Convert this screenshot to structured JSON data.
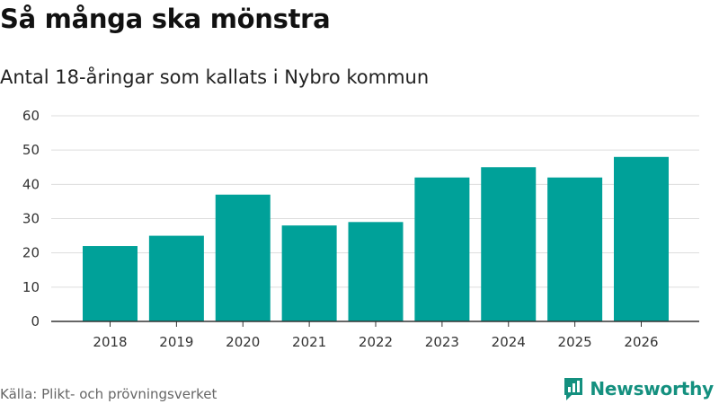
{
  "header": {
    "title": "Så många ska mönstra",
    "subtitle": "Antal 18-åringar som kallats i Nybro kommun"
  },
  "footer": {
    "source": "Källa: Plikt- och prövningsverket",
    "brand": "Newsworthy",
    "brand_logo_icon": "bar-chart-speech-bubble-icon"
  },
  "colors": {
    "bar": "#00a199",
    "grid": "#dddddd",
    "axis": "#333333",
    "brand": "#14907f"
  },
  "chart_data": {
    "type": "bar",
    "categories": [
      "2018",
      "2019",
      "2020",
      "2021",
      "2022",
      "2023",
      "2024",
      "2025",
      "2026"
    ],
    "values": [
      22,
      25,
      37,
      28,
      29,
      42,
      45,
      42,
      48
    ],
    "ylim": [
      0,
      60
    ],
    "yticks": [
      0,
      10,
      20,
      30,
      40,
      50,
      60
    ],
    "grid": true,
    "legend": "none"
  }
}
